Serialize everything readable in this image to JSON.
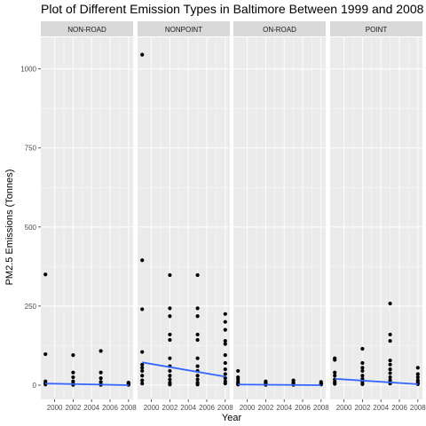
{
  "chart_data": {
    "type": "scatter",
    "title": "Plot of Different Emission Types in Baltimore Between 1999 and 2008",
    "xlabel": "Year",
    "ylabel": "PM2.5 Emissions (Tonnes)",
    "xlim": [
      1998.5,
      2008.5
    ],
    "ylim": [
      -45,
      1100
    ],
    "x_ticks": [
      2000,
      2002,
      2004,
      2006,
      2008
    ],
    "x_tick_labels": [
      "2000",
      "2002",
      "2004",
      "2006",
      "2008"
    ],
    "y_ticks": [
      0,
      250,
      500,
      750,
      1000
    ],
    "y_tick_labels": [
      "0",
      "250",
      "500",
      "750",
      "1000"
    ],
    "grid": true,
    "facets": [
      {
        "name": "NON-ROAD",
        "points": [
          {
            "x": 1999,
            "y": 350
          },
          {
            "x": 1999,
            "y": 98
          },
          {
            "x": 1999,
            "y": 12
          },
          {
            "x": 1999,
            "y": 6
          },
          {
            "x": 1999,
            "y": 2
          },
          {
            "x": 2002,
            "y": 95
          },
          {
            "x": 2002,
            "y": 40
          },
          {
            "x": 2002,
            "y": 25
          },
          {
            "x": 2002,
            "y": 12
          },
          {
            "x": 2002,
            "y": 5
          },
          {
            "x": 2002,
            "y": 1
          },
          {
            "x": 2005,
            "y": 108
          },
          {
            "x": 2005,
            "y": 40
          },
          {
            "x": 2005,
            "y": 22
          },
          {
            "x": 2005,
            "y": 10
          },
          {
            "x": 2005,
            "y": 3
          },
          {
            "x": 2005,
            "y": 1
          },
          {
            "x": 2008,
            "y": 8
          },
          {
            "x": 2008,
            "y": 4
          },
          {
            "x": 2008,
            "y": 1
          }
        ],
        "trend": [
          {
            "x": 1999,
            "y": 5
          },
          {
            "x": 2008,
            "y": 0
          }
        ]
      },
      {
        "name": "NONPOINT",
        "points": [
          {
            "x": 1999,
            "y": 1045
          },
          {
            "x": 1999,
            "y": 395
          },
          {
            "x": 1999,
            "y": 240
          },
          {
            "x": 1999,
            "y": 105
          },
          {
            "x": 1999,
            "y": 65
          },
          {
            "x": 1999,
            "y": 55
          },
          {
            "x": 1999,
            "y": 45
          },
          {
            "x": 1999,
            "y": 30
          },
          {
            "x": 1999,
            "y": 15
          },
          {
            "x": 1999,
            "y": 5
          },
          {
            "x": 2002,
            "y": 348
          },
          {
            "x": 2002,
            "y": 243
          },
          {
            "x": 2002,
            "y": 218
          },
          {
            "x": 2002,
            "y": 160
          },
          {
            "x": 2002,
            "y": 143
          },
          {
            "x": 2002,
            "y": 85
          },
          {
            "x": 2002,
            "y": 60
          },
          {
            "x": 2002,
            "y": 45
          },
          {
            "x": 2002,
            "y": 30
          },
          {
            "x": 2002,
            "y": 18
          },
          {
            "x": 2002,
            "y": 8
          },
          {
            "x": 2002,
            "y": 2
          },
          {
            "x": 2005,
            "y": 348
          },
          {
            "x": 2005,
            "y": 243
          },
          {
            "x": 2005,
            "y": 218
          },
          {
            "x": 2005,
            "y": 160
          },
          {
            "x": 2005,
            "y": 143
          },
          {
            "x": 2005,
            "y": 85
          },
          {
            "x": 2005,
            "y": 60
          },
          {
            "x": 2005,
            "y": 45
          },
          {
            "x": 2005,
            "y": 30
          },
          {
            "x": 2005,
            "y": 18
          },
          {
            "x": 2005,
            "y": 8
          },
          {
            "x": 2005,
            "y": 2
          },
          {
            "x": 2008,
            "y": 225
          },
          {
            "x": 2008,
            "y": 200
          },
          {
            "x": 2008,
            "y": 175
          },
          {
            "x": 2008,
            "y": 140
          },
          {
            "x": 2008,
            "y": 130
          },
          {
            "x": 2008,
            "y": 95
          },
          {
            "x": 2008,
            "y": 70
          },
          {
            "x": 2008,
            "y": 50
          },
          {
            "x": 2008,
            "y": 35
          },
          {
            "x": 2008,
            "y": 22
          },
          {
            "x": 2008,
            "y": 12
          },
          {
            "x": 2008,
            "y": 5
          }
        ],
        "trend": [
          {
            "x": 1999,
            "y": 72
          },
          {
            "x": 2008,
            "y": 27
          }
        ]
      },
      {
        "name": "ON-ROAD",
        "points": [
          {
            "x": 1999,
            "y": 45
          },
          {
            "x": 1999,
            "y": 25
          },
          {
            "x": 1999,
            "y": 18
          },
          {
            "x": 1999,
            "y": 10
          },
          {
            "x": 1999,
            "y": 5
          },
          {
            "x": 1999,
            "y": 2
          },
          {
            "x": 2002,
            "y": 12
          },
          {
            "x": 2002,
            "y": 8
          },
          {
            "x": 2002,
            "y": 4
          },
          {
            "x": 2002,
            "y": 1
          },
          {
            "x": 2005,
            "y": 15
          },
          {
            "x": 2005,
            "y": 8
          },
          {
            "x": 2005,
            "y": 4
          },
          {
            "x": 2005,
            "y": 1
          },
          {
            "x": 2008,
            "y": 10
          },
          {
            "x": 2008,
            "y": 5
          },
          {
            "x": 2008,
            "y": 2
          }
        ],
        "trend": [
          {
            "x": 1999,
            "y": 2
          },
          {
            "x": 2008,
            "y": 0
          }
        ]
      },
      {
        "name": "POINT",
        "points": [
          {
            "x": 1999,
            "y": 85
          },
          {
            "x": 1999,
            "y": 80
          },
          {
            "x": 1999,
            "y": 40
          },
          {
            "x": 1999,
            "y": 30
          },
          {
            "x": 1999,
            "y": 18
          },
          {
            "x": 1999,
            "y": 10
          },
          {
            "x": 1999,
            "y": 4
          },
          {
            "x": 2002,
            "y": 115
          },
          {
            "x": 2002,
            "y": 70
          },
          {
            "x": 2002,
            "y": 55
          },
          {
            "x": 2002,
            "y": 45
          },
          {
            "x": 2002,
            "y": 30
          },
          {
            "x": 2002,
            "y": 20
          },
          {
            "x": 2002,
            "y": 10
          },
          {
            "x": 2002,
            "y": 3
          },
          {
            "x": 2005,
            "y": 258
          },
          {
            "x": 2005,
            "y": 160
          },
          {
            "x": 2005,
            "y": 140
          },
          {
            "x": 2005,
            "y": 78
          },
          {
            "x": 2005,
            "y": 65
          },
          {
            "x": 2005,
            "y": 50
          },
          {
            "x": 2005,
            "y": 38
          },
          {
            "x": 2005,
            "y": 25
          },
          {
            "x": 2005,
            "y": 15
          },
          {
            "x": 2005,
            "y": 5
          },
          {
            "x": 2008,
            "y": 55
          },
          {
            "x": 2008,
            "y": 35
          },
          {
            "x": 2008,
            "y": 25
          },
          {
            "x": 2008,
            "y": 15
          },
          {
            "x": 2008,
            "y": 8
          },
          {
            "x": 2008,
            "y": 3
          }
        ],
        "trend": [
          {
            "x": 1999,
            "y": 20
          },
          {
            "x": 2008,
            "y": 3
          }
        ]
      }
    ],
    "colors": {
      "panel_background": "#ebebeb",
      "grid_major": "#ffffff",
      "strip_background": "#d9d9d9",
      "point": "#000000",
      "trend_line": "#3366ff",
      "tick": "#333333"
    }
  }
}
